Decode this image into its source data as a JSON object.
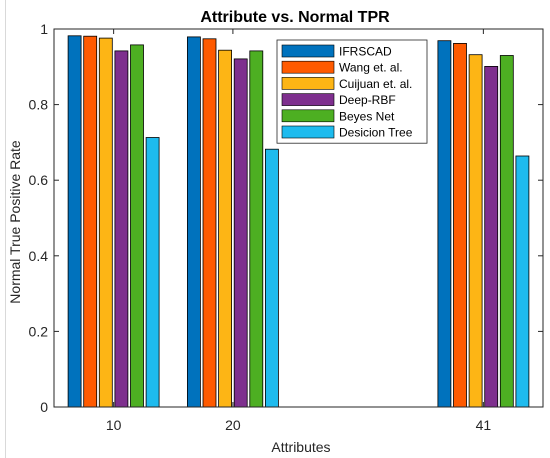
{
  "chart_data": {
    "type": "bar",
    "title": "Attribute vs. Normal TPR",
    "xlabel": "Attributes",
    "ylabel": "Normal True Positive Rate",
    "x": [
      10,
      20,
      41
    ],
    "xlim": [
      5,
      46
    ],
    "ylim": [
      0,
      1
    ],
    "yticks": [
      "0",
      "0.2",
      "0.4",
      "0.6",
      "0.8",
      "1"
    ],
    "xticks": [
      "10",
      "20",
      "41"
    ],
    "grid": false,
    "legend_position": "top-right",
    "series": [
      {
        "name": "IFRSCAD",
        "color": "#0072BD",
        "values": [
          0.982,
          0.979,
          0.969
        ]
      },
      {
        "name": "Wang et. al.",
        "color": "#FF5A00",
        "values": [
          0.981,
          0.974,
          0.962
        ]
      },
      {
        "name": "Cuijuan et. al.",
        "color": "#FDB515",
        "values": [
          0.976,
          0.944,
          0.932
        ]
      },
      {
        "name": "Deep-RBF",
        "color": "#7E2F8E",
        "values": [
          0.942,
          0.921,
          0.901
        ]
      },
      {
        "name": "Beyes Net",
        "color": "#4DAF22",
        "values": [
          0.958,
          0.942,
          0.93
        ]
      },
      {
        "name": "Desicion Tree",
        "color": "#1EBBEE",
        "values": [
          0.713,
          0.682,
          0.664
        ]
      }
    ]
  }
}
